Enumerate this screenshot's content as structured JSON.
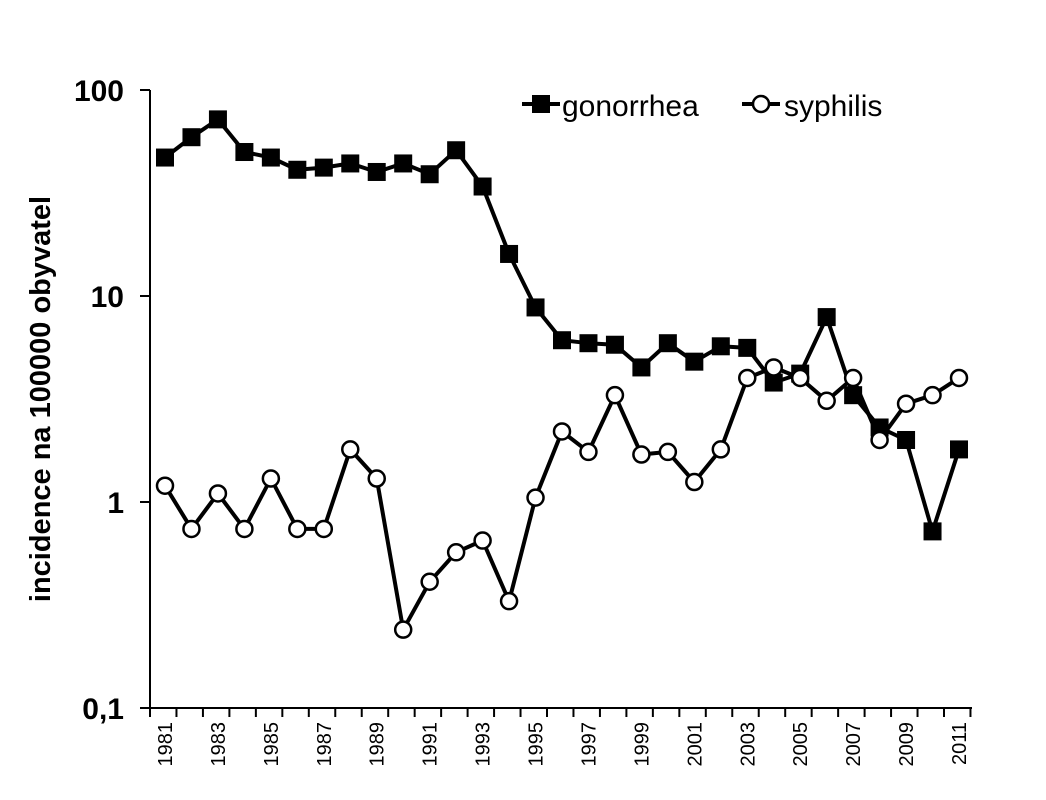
{
  "chart_data": {
    "type": "line",
    "title": "",
    "xlabel": "",
    "ylabel": "incidence na 100000 obyvatel",
    "yscale": "log",
    "ylim": [
      0.1,
      100
    ],
    "y_ticks": [
      {
        "value": 100,
        "label": "100"
      },
      {
        "value": 10,
        "label": "10"
      },
      {
        "value": 1,
        "label": "1"
      },
      {
        "value": 0.1,
        "label": "0,1"
      }
    ],
    "x": [
      1981,
      1982,
      1983,
      1984,
      1985,
      1986,
      1987,
      1988,
      1989,
      1990,
      1991,
      1992,
      1993,
      1994,
      1995,
      1996,
      1997,
      1998,
      1999,
      2000,
      2001,
      2002,
      2003,
      2004,
      2005,
      2006,
      2007,
      2008,
      2009,
      2010,
      2011
    ],
    "x_tick_labels": [
      "1981",
      "1983",
      "1985",
      "1987",
      "1989",
      "1991",
      "1993",
      "1995",
      "1997",
      "1999",
      "2001",
      "2003",
      "2005",
      "2007",
      "2009",
      "2011"
    ],
    "grid": false,
    "legend_position": "top-right",
    "series": [
      {
        "name": "gonorrhea",
        "marker": "filled-square",
        "color": "#000000",
        "values": [
          47,
          59,
          72,
          50,
          47,
          41,
          42,
          44,
          40,
          44,
          39,
          51,
          34,
          16,
          8.8,
          6.1,
          5.9,
          5.8,
          4.5,
          5.9,
          4.8,
          5.7,
          5.6,
          3.8,
          4.2,
          7.9,
          3.3,
          2.3,
          2.0,
          0.72,
          1.8
        ]
      },
      {
        "name": "syphilis",
        "marker": "open-circle",
        "color": "#000000",
        "values": [
          1.2,
          0.74,
          1.1,
          0.74,
          1.3,
          0.74,
          0.74,
          1.8,
          1.3,
          0.24,
          0.41,
          0.57,
          0.65,
          0.33,
          1.05,
          2.2,
          1.75,
          3.3,
          1.7,
          1.75,
          1.25,
          1.8,
          4.0,
          4.5,
          4.0,
          3.1,
          4.0,
          2.0,
          3.0,
          3.3,
          4.0
        ]
      }
    ]
  }
}
